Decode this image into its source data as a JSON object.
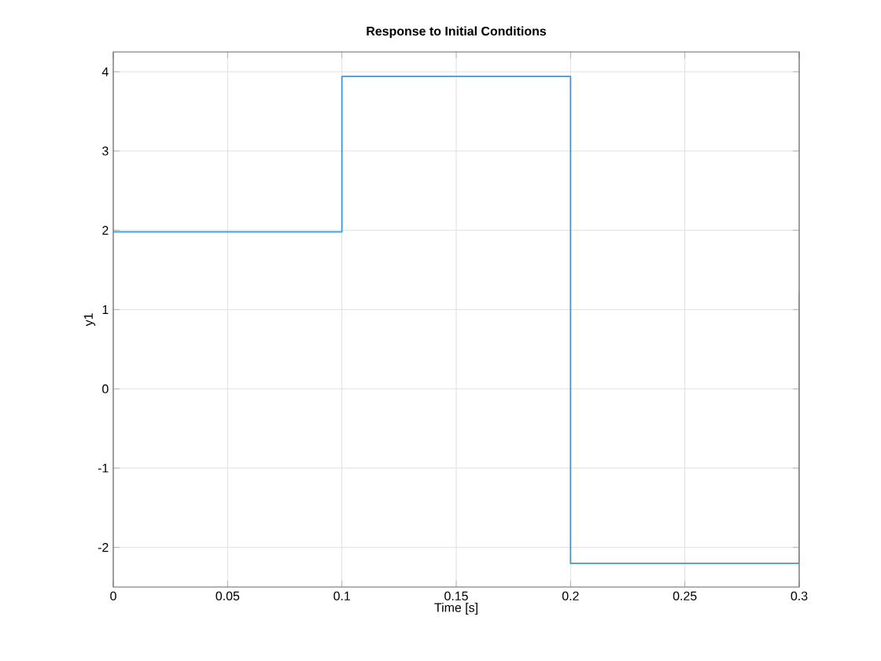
{
  "chart_data": {
    "type": "step",
    "title": "Response to Initial Conditions",
    "xlabel": "Time [s]",
    "ylabel": "y1",
    "x": [
      0,
      0.1,
      0.2,
      0.3
    ],
    "series": [
      {
        "color": "#3f97d8",
        "values": [
          1.98,
          3.94,
          -2.2,
          1.22
        ]
      }
    ],
    "xlim": [
      0,
      0.3
    ],
    "xticks": [
      0,
      0.05,
      0.1,
      0.15,
      0.2,
      0.25,
      0.3
    ],
    "ylim": [
      -2.5,
      4.25
    ],
    "yticks": [
      -2,
      -1,
      0,
      1,
      2,
      3,
      4
    ],
    "grid": true,
    "marker": "none",
    "line_style": "solid"
  }
}
